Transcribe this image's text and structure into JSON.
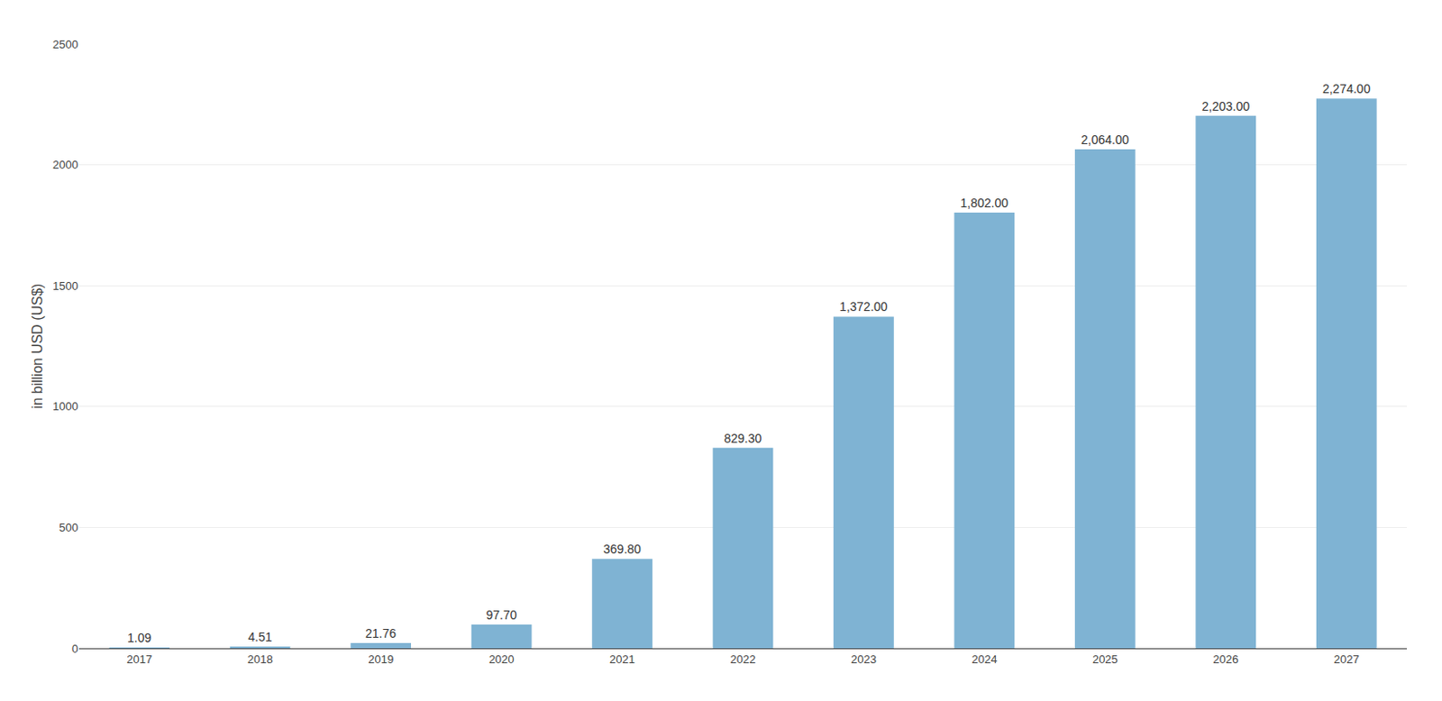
{
  "chart_data": {
    "type": "bar",
    "categories": [
      "2017",
      "2018",
      "2019",
      "2020",
      "2021",
      "2022",
      "2023",
      "2024",
      "2025",
      "2026",
      "2027"
    ],
    "values": [
      1.09,
      4.51,
      21.76,
      97.7,
      369.8,
      829.3,
      1372.0,
      1802.0,
      2064.0,
      2203.0,
      2274.0
    ],
    "value_labels": [
      "1.09",
      "4.51",
      "21.76",
      "97.70",
      "369.80",
      "829.30",
      "1,372.00",
      "1,802.00",
      "2,064.00",
      "2,203.00",
      "2,274.00"
    ],
    "data_labels": true,
    "color": "#7fb3d3",
    "ylabel": "in billion USD (US$)",
    "ylim": [
      0,
      2500
    ],
    "yticks": [
      0,
      500,
      1000,
      1500,
      2000,
      2500
    ],
    "grid": true
  }
}
